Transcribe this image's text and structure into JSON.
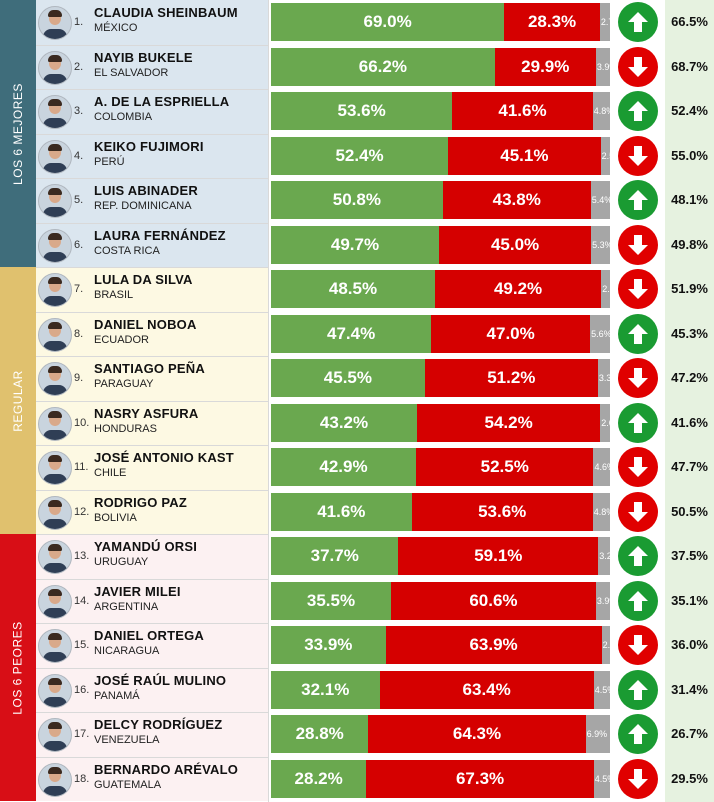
{
  "bands": [
    {
      "label": "LOS 6 MEJORES",
      "color": "#3f6d7b",
      "bg": "#dbe6ef",
      "rows": [
        0,
        5
      ]
    },
    {
      "label": "REGULAR",
      "color": "#e0c16e",
      "bg": "#fdf9e3",
      "rows": [
        6,
        11
      ]
    },
    {
      "label": "LOS 6 PEORES",
      "color": "#d80e16",
      "bg": "#fcf1f2",
      "rows": [
        12,
        17
      ]
    }
  ],
  "chart_data": {
    "type": "bar",
    "stacked": true,
    "orientation": "horizontal",
    "value_format": "percent",
    "categories": [
      "CLAUDIA SHEINBAUM",
      "NAYIB BUKELE",
      "A. DE LA ESPRIELLA",
      "KEIKO FUJIMORI",
      "LUIS ABINADER",
      "LAURA FERNÁNDEZ",
      "LULA DA SILVA",
      "DANIEL NOBOA",
      "SANTIAGO PEÑA",
      "NASRY ASFURA",
      "JOSÉ ANTONIO KAST",
      "RODRIGO PAZ",
      "YAMANDÚ ORSI",
      "JAVIER MILEI",
      "DANIEL ORTEGA",
      "JOSÉ RAÚL MULINO",
      "DELCY RODRÍGUEZ",
      "BERNARDO ARÉVALO"
    ],
    "series": [
      {
        "color": "#6aa84f",
        "values": [
          69.0,
          66.2,
          53.6,
          52.4,
          50.8,
          49.7,
          48.5,
          47.4,
          45.5,
          43.2,
          42.9,
          41.6,
          37.7,
          35.5,
          33.9,
          32.1,
          28.8,
          28.2
        ]
      },
      {
        "color": "#d50000",
        "values": [
          28.3,
          29.9,
          41.6,
          45.1,
          43.8,
          45.0,
          49.2,
          47.0,
          51.2,
          54.2,
          52.5,
          53.6,
          59.1,
          60.6,
          63.9,
          63.4,
          64.3,
          67.3
        ]
      },
      {
        "color": "#a6a6a6",
        "values": [
          2.7,
          3.9,
          4.8,
          2.5,
          5.4,
          5.3,
          2.3,
          5.6,
          3.3,
          2.6,
          4.6,
          4.8,
          3.2,
          3.9,
          2.2,
          4.5,
          6.9,
          4.5
        ]
      }
    ]
  },
  "rows": [
    {
      "rank": "1.",
      "name": "CLAUDIA SHEINBAUM",
      "country": "MÉXICO",
      "approve": "69.0%",
      "disapprove": "28.3%",
      "other": "2.7%",
      "trend": "up",
      "trend_icon": "arrow-up-icon",
      "previous": "66.5%"
    },
    {
      "rank": "2.",
      "name": "NAYIB BUKELE",
      "country": "EL SALVADOR",
      "approve": "66.2%",
      "disapprove": "29.9%",
      "other": "3.9%",
      "trend": "down",
      "trend_icon": "arrow-down-icon",
      "previous": "68.7%"
    },
    {
      "rank": "3.",
      "name": "A. DE LA ESPRIELLA",
      "country": "COLOMBIA",
      "approve": "53.6%",
      "disapprove": "41.6%",
      "other": "4.8%",
      "trend": "up",
      "trend_icon": "arrow-up-icon",
      "previous": "52.4%"
    },
    {
      "rank": "4.",
      "name": "KEIKO FUJIMORI",
      "country": "PERÚ",
      "approve": "52.4%",
      "disapprove": "45.1%",
      "other": "2.5%",
      "trend": "down",
      "trend_icon": "arrow-down-icon",
      "previous": "55.0%"
    },
    {
      "rank": "5.",
      "name": "LUIS ABINADER",
      "country": "REP. DOMINICANA",
      "approve": "50.8%",
      "disapprove": "43.8%",
      "other": "5.4%",
      "trend": "up",
      "trend_icon": "arrow-up-icon",
      "previous": "48.1%"
    },
    {
      "rank": "6.",
      "name": "LAURA FERNÁNDEZ",
      "country": "COSTA RICA",
      "approve": "49.7%",
      "disapprove": "45.0%",
      "other": "5.3%",
      "trend": "down",
      "trend_icon": "arrow-down-icon",
      "previous": "49.8%"
    },
    {
      "rank": "7.",
      "name": "LULA DA SILVA",
      "country": "BRASIL",
      "approve": "48.5%",
      "disapprove": "49.2%",
      "other": "2.3%",
      "trend": "down",
      "trend_icon": "arrow-down-icon",
      "previous": "51.9%"
    },
    {
      "rank": "8.",
      "name": "DANIEL NOBOA",
      "country": "ECUADOR",
      "approve": "47.4%",
      "disapprove": "47.0%",
      "other": "5.6%",
      "trend": "up",
      "trend_icon": "arrow-up-icon",
      "previous": "45.3%"
    },
    {
      "rank": "9.",
      "name": "SANTIAGO PEÑA",
      "country": "PARAGUAY",
      "approve": "45.5%",
      "disapprove": "51.2%",
      "other": "3.3%",
      "trend": "down",
      "trend_icon": "arrow-down-icon",
      "previous": "47.2%"
    },
    {
      "rank": "10.",
      "name": "NASRY ASFURA",
      "country": "HONDURAS",
      "approve": "43.2%",
      "disapprove": "54.2%",
      "other": "2.6%",
      "trend": "up",
      "trend_icon": "arrow-up-icon",
      "previous": "41.6%"
    },
    {
      "rank": "11.",
      "name": "JOSÉ ANTONIO KAST",
      "country": "CHILE",
      "approve": "42.9%",
      "disapprove": "52.5%",
      "other": "4.6%",
      "trend": "down",
      "trend_icon": "arrow-down-icon",
      "previous": "47.7%"
    },
    {
      "rank": "12.",
      "name": "RODRIGO PAZ",
      "country": "BOLIVIA",
      "approve": "41.6%",
      "disapprove": "53.6%",
      "other": "4.8%",
      "trend": "down",
      "trend_icon": "arrow-down-icon",
      "previous": "50.5%"
    },
    {
      "rank": "13.",
      "name": "YAMANDÚ ORSI",
      "country": "URUGUAY",
      "approve": "37.7%",
      "disapprove": "59.1%",
      "other": "3.2%",
      "trend": "up",
      "trend_icon": "arrow-up-icon",
      "previous": "37.5%"
    },
    {
      "rank": "14.",
      "name": "JAVIER MILEI",
      "country": "ARGENTINA",
      "approve": "35.5%",
      "disapprove": "60.6%",
      "other": "3.9%",
      "trend": "up",
      "trend_icon": "arrow-up-icon",
      "previous": "35.1%"
    },
    {
      "rank": "15.",
      "name": "DANIEL ORTEGA",
      "country": "NICARAGUA",
      "approve": "33.9%",
      "disapprove": "63.9%",
      "other": "2.2%",
      "trend": "down",
      "trend_icon": "arrow-down-icon",
      "previous": "36.0%"
    },
    {
      "rank": "16.",
      "name": "JOSÉ RAÚL MULINO",
      "country": "PANAMÁ",
      "approve": "32.1%",
      "disapprove": "63.4%",
      "other": "4.5%",
      "trend": "up",
      "trend_icon": "arrow-up-icon",
      "previous": "31.4%"
    },
    {
      "rank": "17.",
      "name": "DELCY RODRÍGUEZ",
      "country": "VENEZUELA",
      "approve": "28.8%",
      "disapprove": "64.3%",
      "other": "6.9%",
      "trend": "up",
      "trend_icon": "arrow-up-icon",
      "previous": "26.7%"
    },
    {
      "rank": "18.",
      "name": "BERNARDO ARÉVALO",
      "country": "GUATEMALA",
      "approve": "28.2%",
      "disapprove": "67.3%",
      "other": "4.5%",
      "trend": "down",
      "trend_icon": "arrow-down-icon",
      "previous": "29.5%"
    }
  ]
}
